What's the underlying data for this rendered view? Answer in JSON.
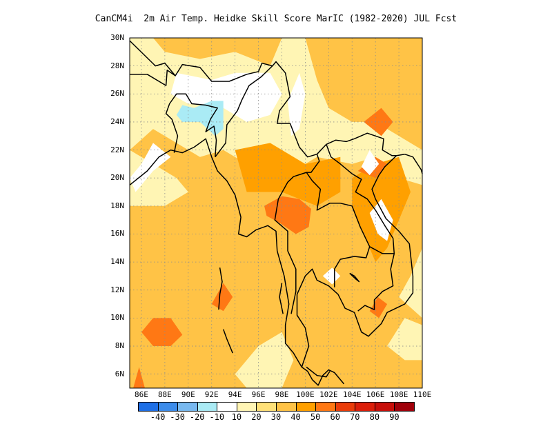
{
  "title": "CanCM4i  2m Air Temp. Heidke Skill Score MarIC (1982-2020) JUL Fcst",
  "map": {
    "lat_labels": [
      "30N",
      "28N",
      "26N",
      "24N",
      "22N",
      "20N",
      "18N",
      "16N",
      "14N",
      "12N",
      "10N",
      "8N",
      "6N"
    ],
    "lat_values": [
      30,
      28,
      26,
      24,
      22,
      20,
      18,
      16,
      14,
      12,
      10,
      8,
      6
    ],
    "lon_labels": [
      "86E",
      "88E",
      "90E",
      "92E",
      "94E",
      "96E",
      "98E",
      "100E",
      "102E",
      "104E",
      "106E",
      "108E",
      "110E"
    ],
    "lon_values": [
      86,
      88,
      90,
      92,
      94,
      96,
      98,
      100,
      102,
      104,
      106,
      108,
      110
    ],
    "lon_range": [
      85,
      110
    ],
    "lat_range": [
      5,
      30
    ],
    "grid": "dotted",
    "background_color": "#fff5b4"
  },
  "colorbar": {
    "colors": [
      "#1e6fe6",
      "#3c8ceb",
      "#78b9f0",
      "#aaebf5",
      "#ffffff",
      "#fff5b4",
      "#ffe178",
      "#ffc346",
      "#ffa000",
      "#ff7814",
      "#eb3c0a",
      "#dc1e0a",
      "#c80f0a",
      "#a0000a"
    ],
    "labels": [
      "-40",
      "-30",
      "-20",
      "-10",
      "10",
      "20",
      "30",
      "40",
      "50",
      "60",
      "70",
      "80",
      "90"
    ]
  }
}
